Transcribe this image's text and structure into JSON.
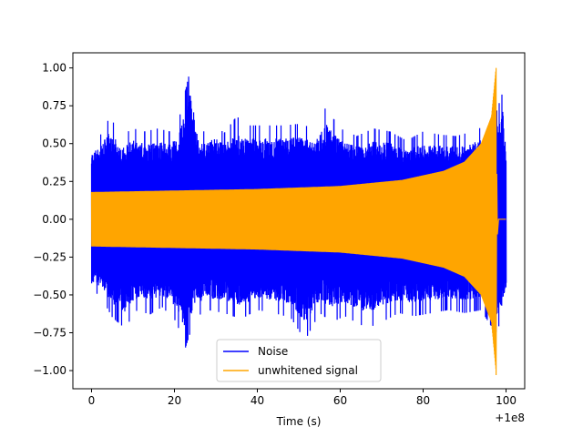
{
  "chart_data": {
    "type": "line",
    "title": "",
    "xlabel": "Time (s)",
    "ylabel": "",
    "x_offset_label": "+1e8",
    "xlim": [
      -4.5,
      104.5
    ],
    "ylim": [
      -1.12,
      1.1
    ],
    "x_ticks": [
      {
        "value": 0,
        "label": "0"
      },
      {
        "value": 20,
        "label": "20"
      },
      {
        "value": 40,
        "label": "40"
      },
      {
        "value": 60,
        "label": "60"
      },
      {
        "value": 80,
        "label": "80"
      },
      {
        "value": 100,
        "label": "100"
      }
    ],
    "y_ticks": [
      {
        "value": 1.0,
        "label": "1.00"
      },
      {
        "value": 0.75,
        "label": "0.75"
      },
      {
        "value": 0.5,
        "label": "0.50"
      },
      {
        "value": 0.25,
        "label": "0.25"
      },
      {
        "value": 0.0,
        "label": "0.00"
      },
      {
        "value": -0.25,
        "label": "−0.25"
      },
      {
        "value": -0.5,
        "label": "−0.50"
      },
      {
        "value": -0.75,
        "label": "−0.75"
      },
      {
        "value": -1.0,
        "label": "−1.00"
      }
    ],
    "grid": false,
    "legend_position": "lower center",
    "series": [
      {
        "name": "Noise",
        "color": "#0000ff",
        "kind": "band",
        "x_range": [
          0,
          100
        ],
        "upper_envelope": [
          [
            0,
            0.5
          ],
          [
            2,
            0.55
          ],
          [
            4.5,
            0.68
          ],
          [
            7,
            0.55
          ],
          [
            10,
            0.6
          ],
          [
            13,
            0.58
          ],
          [
            16,
            0.6
          ],
          [
            19,
            0.58
          ],
          [
            21,
            0.65
          ],
          [
            23.9,
            1.0
          ],
          [
            26,
            0.56
          ],
          [
            28,
            0.6
          ],
          [
            30,
            0.62
          ],
          [
            32,
            0.57
          ],
          [
            35,
            0.68
          ],
          [
            38,
            0.62
          ],
          [
            42,
            0.62
          ],
          [
            46,
            0.62
          ],
          [
            50,
            0.63
          ],
          [
            54,
            0.6
          ],
          [
            56.5,
            0.74
          ],
          [
            60,
            0.6
          ],
          [
            64,
            0.55
          ],
          [
            68,
            0.6
          ],
          [
            72,
            0.58
          ],
          [
            76,
            0.52
          ],
          [
            80,
            0.58
          ],
          [
            84,
            0.56
          ],
          [
            88,
            0.55
          ],
          [
            92,
            0.58
          ],
          [
            95,
            0.62
          ],
          [
            97,
            0.65
          ],
          [
            99.3,
            0.85
          ],
          [
            100,
            0.5
          ]
        ],
        "lower_envelope": [
          [
            0,
            -0.48
          ],
          [
            2,
            -0.5
          ],
          [
            5,
            -0.65
          ],
          [
            8,
            -0.72
          ],
          [
            11,
            -0.6
          ],
          [
            14,
            -0.63
          ],
          [
            17,
            -0.58
          ],
          [
            20.5,
            -0.68
          ],
          [
            22.5,
            -0.86
          ],
          [
            25,
            -0.65
          ],
          [
            28,
            -0.6
          ],
          [
            32,
            -0.62
          ],
          [
            36,
            -0.66
          ],
          [
            40,
            -0.6
          ],
          [
            44,
            -0.62
          ],
          [
            48,
            -0.65
          ],
          [
            51.5,
            -0.8
          ],
          [
            55,
            -0.62
          ],
          [
            58,
            -0.68
          ],
          [
            61,
            -0.64
          ],
          [
            66.5,
            -0.72
          ],
          [
            70,
            -0.68
          ],
          [
            74,
            -0.62
          ],
          [
            78,
            -0.64
          ],
          [
            82,
            -0.62
          ],
          [
            86,
            -0.6
          ],
          [
            90,
            -0.62
          ],
          [
            94,
            -0.6
          ],
          [
            95.5,
            -0.67
          ],
          [
            97.5,
            -0.75
          ],
          [
            99,
            -0.66
          ],
          [
            100,
            -0.55
          ]
        ]
      },
      {
        "name": "unwhitened signal",
        "color": "#ffa500",
        "kind": "chirp",
        "x_range": [
          0,
          100
        ],
        "amplitude_envelope": [
          [
            0,
            0.18
          ],
          [
            20,
            0.19
          ],
          [
            40,
            0.2
          ],
          [
            60,
            0.22
          ],
          [
            75,
            0.26
          ],
          [
            85,
            0.32
          ],
          [
            90,
            0.38
          ],
          [
            94,
            0.5
          ],
          [
            96.5,
            0.68
          ],
          [
            97.6,
            1.0
          ]
        ],
        "peak_time": 97.6,
        "peak_min": -1.03,
        "ringdown_end": 98.2
      }
    ]
  }
}
